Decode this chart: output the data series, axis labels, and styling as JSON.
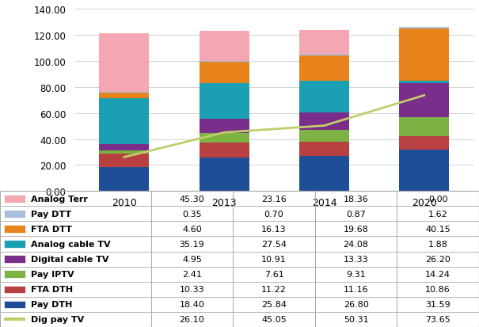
{
  "years": [
    2010,
    2013,
    2014,
    2020
  ],
  "year_labels": [
    "2010",
    "2013",
    "2014",
    "2020"
  ],
  "series": [
    {
      "name": "Pay DTH",
      "values": [
        18.4,
        25.84,
        26.8,
        31.59
      ],
      "color": "#1F4E99"
    },
    {
      "name": "FTA DTH",
      "values": [
        10.33,
        11.22,
        11.16,
        10.86
      ],
      "color": "#B94040"
    },
    {
      "name": "Pay IPTV",
      "values": [
        2.41,
        7.61,
        9.31,
        14.24
      ],
      "color": "#7CB342"
    },
    {
      "name": "Digital cable TV",
      "values": [
        4.95,
        10.91,
        13.33,
        26.2
      ],
      "color": "#7B2D8B"
    },
    {
      "name": "Analog cable TV",
      "values": [
        35.19,
        27.54,
        24.08,
        1.88
      ],
      "color": "#1A9FB3"
    },
    {
      "name": "FTA DTT",
      "values": [
        4.6,
        16.13,
        19.68,
        40.15
      ],
      "color": "#E8821A"
    },
    {
      "name": "Pay DTT",
      "values": [
        0.35,
        0.7,
        0.87,
        1.62
      ],
      "color": "#A8BFDB"
    },
    {
      "name": "Analog Terr",
      "values": [
        45.3,
        23.16,
        18.36,
        0.0
      ],
      "color": "#F4A7B2"
    }
  ],
  "line": {
    "name": "Dig pay TV",
    "values": [
      26.1,
      45.05,
      50.31,
      73.65
    ],
    "color": "#BFCE6B"
  },
  "ylim": [
    0,
    140
  ],
  "yticks": [
    0,
    20,
    40,
    60,
    80,
    100,
    120,
    140
  ],
  "bar_width": 0.5,
  "background_color": "#FFFFFF",
  "grid_color": "#CCCCCC",
  "table_line_color": "#AAAAAA",
  "legend_order": [
    "Analog Terr",
    "Pay DTT",
    "FTA DTT",
    "Analog cable TV",
    "Digital cable TV",
    "Pay IPTV",
    "FTA DTH",
    "Pay DTH",
    "Dig pay TV"
  ]
}
